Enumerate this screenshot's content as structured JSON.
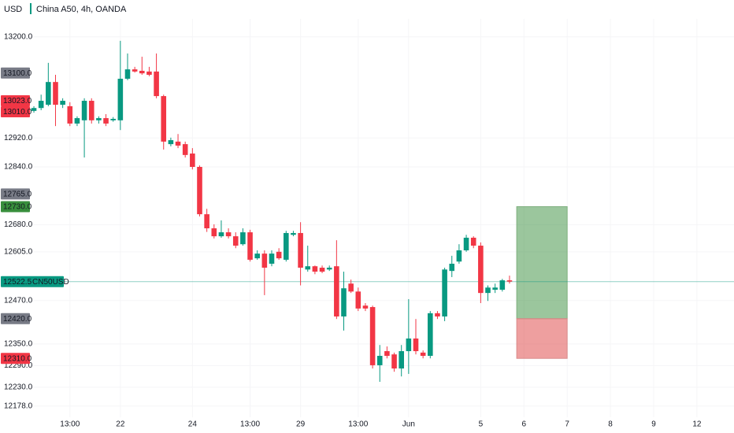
{
  "chart_data": {
    "type": "candlestick",
    "currency": "USD",
    "title": "China A50, 4h, OANDA",
    "up_color": "#089981",
    "down_color": "#f23645",
    "ylim": [
      12147,
      13302
    ],
    "xlim": [
      -0.55,
      97.15
    ],
    "yticks": [
      {
        "value": 12178,
        "label": "12178.0"
      },
      {
        "value": 12230,
        "label": "12230.0"
      },
      {
        "value": 12290,
        "label": "12290.0"
      },
      {
        "value": 12350,
        "label": "12350.0"
      },
      {
        "value": 12470,
        "label": "12470.0"
      },
      {
        "value": 12605,
        "label": "12605.0"
      },
      {
        "value": 12680,
        "label": "12680.0"
      },
      {
        "value": 12840,
        "label": "12840.0"
      },
      {
        "value": 12920,
        "label": "12920.0"
      },
      {
        "value": 13200,
        "label": "13200.0"
      }
    ],
    "xticks": [
      {
        "value": 5,
        "label": "13:00"
      },
      {
        "value": 12,
        "label": "22"
      },
      {
        "value": 22,
        "label": "24"
      },
      {
        "value": 30,
        "label": "13:00"
      },
      {
        "value": 37,
        "label": "29"
      },
      {
        "value": 45,
        "label": "13:00"
      },
      {
        "value": 52,
        "label": "Jun"
      },
      {
        "value": 62,
        "label": "5"
      },
      {
        "value": 68,
        "label": "6"
      },
      {
        "value": 74,
        "label": "7"
      },
      {
        "value": 80,
        "label": "8"
      },
      {
        "value": 86,
        "label": "9"
      },
      {
        "value": 92,
        "label": "12"
      }
    ],
    "open": [
      12995,
      13003,
      13012,
      13075,
      13012,
      13008,
      12960,
      12969,
      13023,
      12969,
      12975,
      12969,
      12969,
      13084,
      13110,
      13106,
      13104,
      13104,
      13036,
      12903,
      12910,
      12903,
      12877,
      12840,
      12709,
      12670,
      12648,
      12659,
      12648,
      12626,
      12659,
      12587,
      12600,
      12572,
      12605,
      12583,
      12652,
      12657,
      12556,
      12565,
      12561,
      12556,
      12565,
      12426,
      12517,
      12495,
      12456,
      12452,
      12291,
      12330,
      12321,
      12282,
      12330,
      12365,
      12326,
      12317,
      12435,
      12426,
      12552,
      12578,
      12609,
      12644,
      12622,
      12491,
      12500,
      12500,
      12526
    ],
    "high": [
      13008,
      13040,
      13128,
      13095,
      13030,
      13019,
      12980,
      13030,
      13030,
      12980,
      12986,
      12978,
      13189,
      13154,
      13117,
      13145,
      13117,
      13154,
      13040,
      12921,
      12931,
      12910,
      12892,
      12844,
      12724,
      12681,
      12692,
      12670,
      12659,
      12670,
      12666,
      12609,
      12609,
      12609,
      12615,
      12663,
      12663,
      12687,
      12622,
      12567,
      12567,
      12567,
      12637,
      12550,
      12528,
      12506,
      12463,
      12456,
      12347,
      12343,
      12326,
      12347,
      12474,
      12419,
      12332,
      12441,
      12441,
      12561,
      12594,
      12626,
      12652,
      12648,
      12631,
      12512,
      12517,
      12530,
      12539
    ],
    "low": [
      12990,
      12997,
      13008,
      12953,
      13003,
      12953,
      12953,
      12866,
      12960,
      12960,
      12953,
      12965,
      12942,
      13080,
      13101,
      13095,
      13091,
      13030,
      12888,
      12897,
      12892,
      12866,
      12833,
      12703,
      12660,
      12642,
      12644,
      12642,
      12615,
      12622,
      12578,
      12583,
      12485,
      12565,
      12583,
      12578,
      12648,
      12512,
      12550,
      12543,
      12546,
      12552,
      12419,
      12387,
      12491,
      12441,
      12441,
      12282,
      12245,
      12310,
      12273,
      12260,
      12267,
      12321,
      12310,
      12310,
      12419,
      12413,
      12535,
      12572,
      12605,
      12615,
      12463,
      12469,
      12491,
      12495,
      12517
    ],
    "close": [
      13003,
      13023,
      13075,
      13012,
      13023,
      12960,
      12975,
      13023,
      12969,
      12975,
      12960,
      12973,
      13084,
      13110,
      13104,
      13099,
      13095,
      13036,
      12910,
      12914,
      12899,
      12873,
      12840,
      12709,
      12670,
      12648,
      12659,
      12648,
      12622,
      12659,
      12583,
      12600,
      12561,
      12600,
      12587,
      12657,
      12657,
      12561,
      12565,
      12550,
      12550,
      12561,
      12426,
      12504,
      12495,
      12448,
      12448,
      12291,
      12317,
      12317,
      12282,
      12330,
      12365,
      12330,
      12317,
      12435,
      12426,
      12556,
      12572,
      12609,
      12644,
      12622,
      12491,
      12506,
      12506,
      12526,
      12522.5
    ],
    "position": {
      "x_start": 67,
      "x_end": 74,
      "target": 12730,
      "entry": 12420,
      "stop": 12310
    },
    "price_labels": [
      {
        "value": 13100,
        "label": "13100.0",
        "color": "#787b86"
      },
      {
        "value": 13023,
        "label": "13023.0",
        "color": "#f23645"
      },
      {
        "value": 13010,
        "label": "13010.0",
        "color": "#f23645"
      },
      {
        "value": 12765,
        "label": "12765.0",
        "color": "#787b86"
      },
      {
        "value": 12730,
        "label": "12730.0",
        "color": "#388e3c"
      },
      {
        "value": 12420,
        "label": "12420.0",
        "color": "#787b86"
      },
      {
        "value": 12310,
        "label": "12310.0",
        "color": "#f23645"
      }
    ],
    "last_price": {
      "value": 12522.5,
      "label": "12522.5",
      "symbol": "CN50USD",
      "color": "#089981"
    }
  }
}
